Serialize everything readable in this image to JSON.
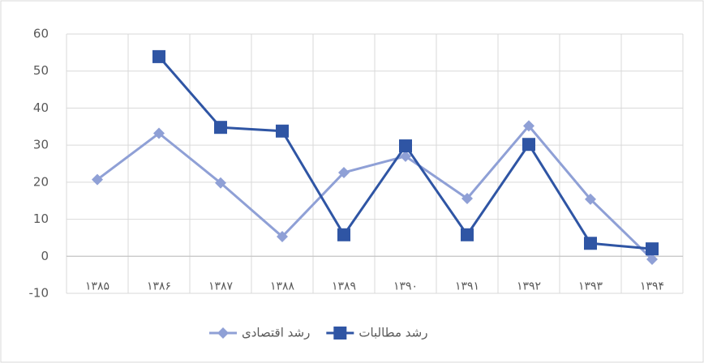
{
  "chart_data": {
    "type": "line",
    "categories": [
      "۱۳۸۵",
      "۱۳۸۶",
      "۱۳۸۷",
      "۱۳۸۸",
      "۱۳۸۹",
      "۱۳۹۰",
      "۱۳۹۱",
      "۱۳۹۲",
      "۱۳۹۳",
      "۱۳۹۴"
    ],
    "series": [
      {
        "name": "رشد اقتصادی",
        "color": "#8fa0d6",
        "marker": "diamond",
        "values": [
          20.7,
          33.2,
          19.8,
          5.3,
          22.6,
          27,
          15.6,
          35.2,
          15.4,
          -0.8
        ]
      },
      {
        "name": "رشد مطالبات",
        "color": "#2f55a4",
        "marker": "square",
        "values": [
          null,
          53.9,
          34.8,
          33.8,
          5.8,
          29.8,
          5.8,
          30.2,
          3.5,
          2.0
        ]
      }
    ],
    "ylim": [
      -10,
      60
    ],
    "yticks": [
      -10,
      0,
      10,
      20,
      30,
      40,
      50,
      60
    ],
    "grid": true,
    "legend": "bottom"
  }
}
